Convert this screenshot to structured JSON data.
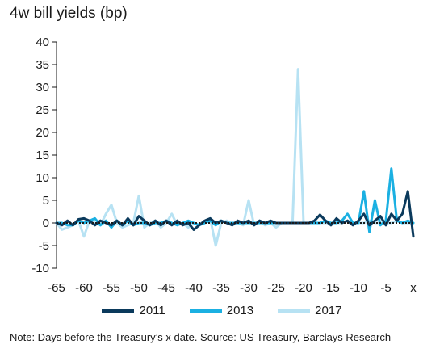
{
  "chart_data": {
    "type": "line",
    "title": "4w bill yields (bp)",
    "xlabel": "",
    "ylabel": "",
    "x_tick_labels": [
      "-65",
      "-60",
      "-55",
      "-50",
      "-45",
      "-40",
      "-35",
      "-30",
      "-25",
      "-20",
      "-15",
      "-10",
      "-5",
      "x"
    ],
    "y_ticks": [
      40,
      35,
      30,
      25,
      20,
      15,
      10,
      5,
      0,
      -5,
      -10
    ],
    "xlim": [
      -65,
      0
    ],
    "ylim": [
      -10,
      40
    ],
    "zero_line_style": "dotted",
    "grid": false,
    "legend_position": "bottom",
    "series": [
      {
        "name": "2011",
        "color": "#0b3a5c",
        "points": [
          [
            -65,
            0
          ],
          [
            -64,
            -0.5
          ],
          [
            -63,
            0.5
          ],
          [
            -62,
            -0.5
          ],
          [
            -61,
            0.8
          ],
          [
            -60,
            1
          ],
          [
            -59,
            0.5
          ],
          [
            -58,
            -0.5
          ],
          [
            -57,
            0.5
          ],
          [
            -56,
            0
          ],
          [
            -55,
            -0.5
          ],
          [
            -54,
            0.5
          ],
          [
            -53,
            -0.5
          ],
          [
            -52,
            1
          ],
          [
            -51,
            -0.5
          ],
          [
            -50,
            1.5
          ],
          [
            -49,
            0.5
          ],
          [
            -48,
            -0.5
          ],
          [
            -47,
            0.5
          ],
          [
            -46,
            -0.5
          ],
          [
            -45,
            0.5
          ],
          [
            -44,
            -0.5
          ],
          [
            -43,
            0.5
          ],
          [
            -42,
            -0.5
          ],
          [
            -41,
            0
          ],
          [
            -40,
            -1.5
          ],
          [
            -39,
            -0.5
          ],
          [
            -38,
            0.5
          ],
          [
            -37,
            1
          ],
          [
            -36,
            0
          ],
          [
            -35,
            0.5
          ],
          [
            -34,
            0
          ],
          [
            -33,
            -0.5
          ],
          [
            -32,
            0.5
          ],
          [
            -31,
            0
          ],
          [
            -30,
            0.5
          ],
          [
            -29,
            -0.5
          ],
          [
            -28,
            0.5
          ],
          [
            -27,
            0
          ],
          [
            -26,
            0.5
          ],
          [
            -25,
            0
          ],
          [
            -24,
            0
          ],
          [
            -23,
            0
          ],
          [
            -22,
            0
          ],
          [
            -21,
            0
          ],
          [
            -20,
            0
          ],
          [
            -19,
            0
          ],
          [
            -18,
            0.5
          ],
          [
            -17,
            1.8
          ],
          [
            -16,
            0.5
          ],
          [
            -15,
            -0.5
          ],
          [
            -14,
            1
          ],
          [
            -13,
            0
          ],
          [
            -12,
            0.5
          ],
          [
            -11,
            -0.5
          ],
          [
            -10,
            0.5
          ],
          [
            -9,
            2
          ],
          [
            -8,
            -0.5
          ],
          [
            -7,
            0.5
          ],
          [
            -6,
            1.5
          ],
          [
            -5,
            -0.5
          ],
          [
            -4,
            2
          ],
          [
            -3,
            0.5
          ],
          [
            -2,
            2
          ],
          [
            -1,
            7
          ],
          [
            0,
            -3
          ]
        ]
      },
      {
        "name": "2013",
        "color": "#1bb0e2",
        "points": [
          [
            -65,
            0
          ],
          [
            -64,
            0
          ],
          [
            -63,
            -0.5
          ],
          [
            -62,
            -0.5
          ],
          [
            -61,
            0.5
          ],
          [
            -60,
            0
          ],
          [
            -59,
            0.5
          ],
          [
            -58,
            1
          ],
          [
            -57,
            -0.5
          ],
          [
            -56,
            0.5
          ],
          [
            -55,
            -1
          ],
          [
            -54,
            0.5
          ],
          [
            -53,
            -0.5
          ],
          [
            -52,
            0.5
          ],
          [
            -51,
            -0.5
          ],
          [
            -50,
            0
          ],
          [
            -49,
            0
          ],
          [
            -48,
            -0.5
          ],
          [
            -47,
            0
          ],
          [
            -46,
            0
          ],
          [
            -45,
            0.5
          ],
          [
            -44,
            0
          ],
          [
            -43,
            -0.5
          ],
          [
            -42,
            0
          ],
          [
            -41,
            0.5
          ],
          [
            -40,
            0
          ],
          [
            -39,
            -0.5
          ],
          [
            -38,
            0
          ],
          [
            -37,
            0.5
          ],
          [
            -36,
            -0.5
          ],
          [
            -35,
            0.5
          ],
          [
            -34,
            0
          ],
          [
            -33,
            0
          ],
          [
            -32,
            0
          ],
          [
            -31,
            0
          ],
          [
            -30,
            0
          ],
          [
            -29,
            0
          ],
          [
            -28,
            0
          ],
          [
            -27,
            0
          ],
          [
            -26,
            0
          ],
          [
            -25,
            0
          ],
          [
            -24,
            0
          ],
          [
            -23,
            0
          ],
          [
            -22,
            0
          ],
          [
            -21,
            0
          ],
          [
            -20,
            0
          ],
          [
            -19,
            0
          ],
          [
            -18,
            0
          ],
          [
            -17,
            0
          ],
          [
            -16,
            0.5
          ],
          [
            -15,
            0
          ],
          [
            -14,
            0
          ],
          [
            -13,
            0.5
          ],
          [
            -12,
            2
          ],
          [
            -11,
            0
          ],
          [
            -10,
            0
          ],
          [
            -9,
            7
          ],
          [
            -8,
            -2
          ],
          [
            -7,
            5
          ],
          [
            -6,
            -0.5
          ],
          [
            -5,
            0.5
          ],
          [
            -4,
            12
          ],
          [
            -3,
            0.5
          ],
          [
            -2,
            0
          ],
          [
            -1,
            0.5
          ],
          [
            0,
            0
          ]
        ]
      },
      {
        "name": "2017",
        "color": "#b7e2f3",
        "points": [
          [
            -65,
            0
          ],
          [
            -64,
            -1.5
          ],
          [
            -63,
            -1
          ],
          [
            -62,
            -0.5
          ],
          [
            -61,
            0.5
          ],
          [
            -60,
            -3
          ],
          [
            -59,
            0.5
          ],
          [
            -58,
            0
          ],
          [
            -57,
            -0.5
          ],
          [
            -56,
            2
          ],
          [
            -55,
            4
          ],
          [
            -54,
            0
          ],
          [
            -53,
            -1
          ],
          [
            -52,
            -0.5
          ],
          [
            -51,
            0
          ],
          [
            -50,
            6
          ],
          [
            -49,
            -1
          ],
          [
            -48,
            0
          ],
          [
            -47,
            0.5
          ],
          [
            -46,
            -1
          ],
          [
            -45,
            0
          ],
          [
            -44,
            2
          ],
          [
            -43,
            -0.5
          ],
          [
            -42,
            0
          ],
          [
            -41,
            -1
          ],
          [
            -40,
            0
          ],
          [
            -39,
            -0.5
          ],
          [
            -38,
            0
          ],
          [
            -37,
            1
          ],
          [
            -36,
            -5
          ],
          [
            -35,
            0
          ],
          [
            -34,
            0.5
          ],
          [
            -33,
            -0.5
          ],
          [
            -32,
            0
          ],
          [
            -31,
            -0.5
          ],
          [
            -30,
            5
          ],
          [
            -29,
            -0.5
          ],
          [
            -28,
            0.5
          ],
          [
            -27,
            -0.5
          ],
          [
            -26,
            0
          ],
          [
            -25,
            -1
          ],
          [
            -24,
            0
          ],
          [
            -23,
            0
          ],
          [
            -22,
            0
          ],
          [
            -21,
            34
          ],
          [
            -20,
            0
          ],
          [
            -19,
            0
          ],
          [
            -18,
            0
          ],
          [
            -17,
            0
          ],
          [
            -16,
            0
          ],
          [
            -15,
            0
          ],
          [
            -14,
            0
          ],
          [
            -13,
            0
          ],
          [
            -12,
            0.5
          ],
          [
            -11,
            0
          ],
          [
            -10,
            0
          ],
          [
            -9,
            0
          ],
          [
            -8,
            0.5
          ],
          [
            -7,
            0
          ],
          [
            -6,
            0
          ],
          [
            -5,
            0
          ],
          [
            -4,
            0
          ],
          [
            -3,
            0.5
          ],
          [
            -2,
            0
          ],
          [
            -1,
            0
          ],
          [
            0,
            0
          ]
        ]
      }
    ]
  },
  "note": "Note: Days before the Treasury’s x date. Source: US Treasury, Barclays Research"
}
